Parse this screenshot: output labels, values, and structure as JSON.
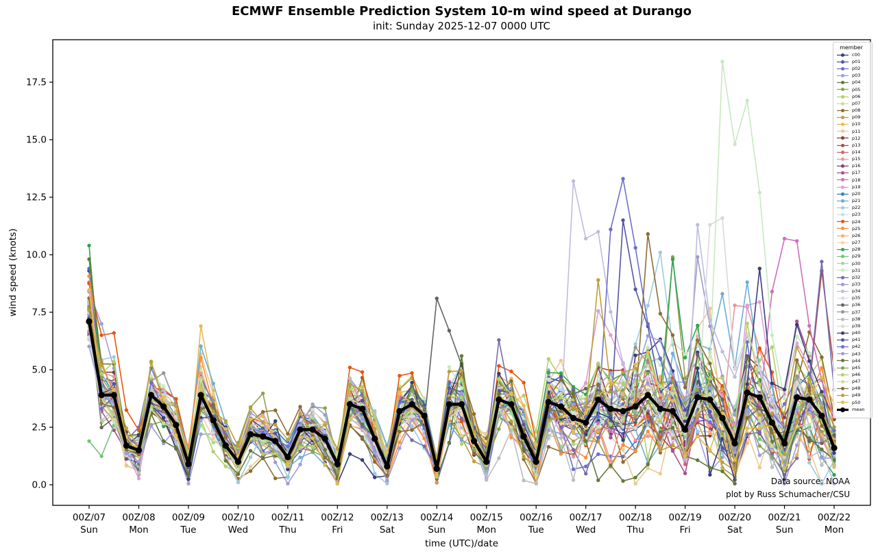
{
  "chart_data": {
    "type": "line",
    "title": "ECMWF Ensemble Prediction System 10-m wind speed at Durango",
    "subtitle": "init: Sunday 2025-12-07 0000 UTC",
    "xlabel": "time (UTC)/date",
    "ylabel": "wind speed (knots)",
    "annotation": [
      "Data source: NOAA",
      "plot by Russ Schumacher/CSU"
    ],
    "legend_title": "member",
    "grid": false,
    "legend_position": "upper right",
    "ylim": [
      -0.9,
      19.4
    ],
    "y_ticks": {
      "values": [
        0,
        2.5,
        5,
        7.5,
        10,
        12.5,
        15,
        17.5
      ],
      "labels": [
        "0.0",
        "2.5",
        "5.0",
        "7.5",
        "10.0",
        "12.5",
        "15.0",
        "17.5"
      ]
    },
    "x_ticks": [
      {
        "label": "00Z/07",
        "day": "Sun"
      },
      {
        "label": "00Z/08",
        "day": "Mon"
      },
      {
        "label": "00Z/09",
        "day": "Tue"
      },
      {
        "label": "00Z/10",
        "day": "Wed"
      },
      {
        "label": "00Z/11",
        "day": "Thu"
      },
      {
        "label": "00Z/12",
        "day": "Fri"
      },
      {
        "label": "00Z/13",
        "day": "Sat"
      },
      {
        "label": "00Z/14",
        "day": "Sun"
      },
      {
        "label": "00Z/15",
        "day": "Mon"
      },
      {
        "label": "00Z/16",
        "day": "Tue"
      },
      {
        "label": "00Z/17",
        "day": "Wed"
      },
      {
        "label": "00Z/18",
        "day": "Thu"
      },
      {
        "label": "00Z/19",
        "day": "Fri"
      },
      {
        "label": "00Z/20",
        "day": "Sat"
      },
      {
        "label": "00Z/21",
        "day": "Sun"
      },
      {
        "label": "00Z/22",
        "day": "Mon"
      }
    ],
    "points_per_series": 61,
    "step_hours": 6,
    "mean": {
      "name": "mean",
      "color": "#000000",
      "values": [
        7.1,
        3.9,
        3.9,
        1.7,
        1.5,
        3.9,
        3.4,
        2.6,
        0.9,
        3.9,
        2.8,
        1.7,
        1.0,
        2.2,
        2.1,
        1.9,
        1.2,
        2.4,
        2.4,
        2.0,
        0.9,
        3.5,
        3.3,
        2.0,
        0.8,
        3.2,
        3.5,
        3.0,
        0.7,
        3.5,
        3.5,
        1.9,
        1.0,
        3.7,
        3.5,
        2.1,
        1.0,
        3.6,
        3.4,
        2.9,
        2.7,
        3.7,
        3.3,
        3.2,
        3.4,
        3.9,
        3.3,
        3.2,
        2.4,
        3.8,
        3.7,
        2.9,
        1.8,
        4.0,
        3.8,
        2.7,
        1.8,
        3.8,
        3.7,
        3.0,
        1.6
      ]
    },
    "members": [
      {
        "name": "c00",
        "color": "#393b79",
        "seed": 11
      },
      {
        "name": "p01",
        "color": "#5254a3",
        "seed": 23
      },
      {
        "name": "p02",
        "color": "#6b6ecf",
        "seed": 37
      },
      {
        "name": "p03",
        "color": "#9c9ede",
        "seed": 41
      },
      {
        "name": "p04",
        "color": "#637939",
        "seed": 53
      },
      {
        "name": "p05",
        "color": "#8ca252",
        "seed": 67
      },
      {
        "name": "p06",
        "color": "#b5cf6b",
        "seed": 71
      },
      {
        "name": "p07",
        "color": "#cedb9c",
        "seed": 83
      },
      {
        "name": "p08",
        "color": "#8c6d31",
        "seed": 89
      },
      {
        "name": "p09",
        "color": "#bd9e39",
        "seed": 97
      },
      {
        "name": "p10",
        "color": "#e7ba52",
        "seed": 103
      },
      {
        "name": "p11",
        "color": "#e7cb94",
        "seed": 109
      },
      {
        "name": "p12",
        "color": "#843c39",
        "seed": 127
      },
      {
        "name": "p13",
        "color": "#ad494a",
        "seed": 131
      },
      {
        "name": "p14",
        "color": "#d6616b",
        "seed": 139
      },
      {
        "name": "p15",
        "color": "#e7969c",
        "seed": 149
      },
      {
        "name": "p16",
        "color": "#7b4173",
        "seed": 157
      },
      {
        "name": "p17",
        "color": "#a55194",
        "seed": 163
      },
      {
        "name": "p18",
        "color": "#ce6dbd",
        "seed": 173
      },
      {
        "name": "p19",
        "color": "#de9ed6",
        "seed": 179
      },
      {
        "name": "p20",
        "color": "#3182bd",
        "seed": 191
      },
      {
        "name": "p21",
        "color": "#6baed6",
        "seed": 193
      },
      {
        "name": "p22",
        "color": "#9ecae1",
        "seed": 199
      },
      {
        "name": "p23",
        "color": "#c6dbef",
        "seed": 211
      },
      {
        "name": "p24",
        "color": "#e6550d",
        "seed": 223
      },
      {
        "name": "p25",
        "color": "#fd8d3c",
        "seed": 227
      },
      {
        "name": "p26",
        "color": "#fdae6b",
        "seed": 233
      },
      {
        "name": "p27",
        "color": "#fdd0a2",
        "seed": 239
      },
      {
        "name": "p28",
        "color": "#31a354",
        "seed": 251
      },
      {
        "name": "p29",
        "color": "#74c476",
        "seed": 257
      },
      {
        "name": "p30",
        "color": "#a1d99b",
        "seed": 263
      },
      {
        "name": "p31",
        "color": "#c7e9c0",
        "seed": 271
      },
      {
        "name": "p32",
        "color": "#756bb1",
        "seed": 277
      },
      {
        "name": "p33",
        "color": "#9e9ac8",
        "seed": 281
      },
      {
        "name": "p34",
        "color": "#bcbddc",
        "seed": 293
      },
      {
        "name": "p35",
        "color": "#dadaeb",
        "seed": 307
      },
      {
        "name": "p36",
        "color": "#636363",
        "seed": 311
      },
      {
        "name": "p37",
        "color": "#969696",
        "seed": 317
      },
      {
        "name": "p38",
        "color": "#bdbdbd",
        "seed": 331
      },
      {
        "name": "p39",
        "color": "#d9d9d9",
        "seed": 337
      },
      {
        "name": "p40",
        "color": "#393b79",
        "seed": 349
      },
      {
        "name": "p41",
        "color": "#5254a3",
        "seed": 353
      },
      {
        "name": "p42",
        "color": "#6b6ecf",
        "seed": 359
      },
      {
        "name": "p43",
        "color": "#9c9ede",
        "seed": 367
      },
      {
        "name": "p44",
        "color": "#637939",
        "seed": 373
      },
      {
        "name": "p45",
        "color": "#8ca252",
        "seed": 379
      },
      {
        "name": "p46",
        "color": "#b5cf6b",
        "seed": 389
      },
      {
        "name": "p47",
        "color": "#cedb9c",
        "seed": 397
      },
      {
        "name": "p48",
        "color": "#8c6d31",
        "seed": 401
      },
      {
        "name": "p49",
        "color": "#bd9e39",
        "seed": 409
      },
      {
        "name": "p50",
        "color": "#e7ba52",
        "seed": 419
      }
    ],
    "member_gen": {
      "sigma": [
        2.0,
        1.4,
        1.4,
        0.7,
        0.8,
        1.2,
        1.1,
        0.9,
        0.7,
        1.2,
        1.0,
        0.8,
        0.6,
        0.9,
        0.9,
        0.8,
        0.7,
        1.0,
        1.0,
        0.9,
        0.6,
        1.2,
        1.2,
        0.9,
        0.6,
        1.2,
        1.2,
        1.1,
        0.6,
        1.3,
        1.5,
        1.0,
        0.8,
        1.4,
        1.4,
        1.2,
        0.9,
        1.5,
        1.6,
        1.6,
        1.5,
        1.8,
        1.7,
        1.9,
        2.0,
        2.1,
        2.1,
        1.9,
        1.7,
        2.2,
        2.2,
        2.0,
        1.7,
        2.3,
        2.2,
        1.8,
        1.5,
        2.1,
        2.0,
        1.8,
        1.4
      ],
      "ar": 0.55,
      "k_min": 0.55,
      "k_span": 1.0,
      "clip_min": 0.05,
      "clip_max": 19.0
    },
    "feature_points": [
      [
        "c00",
        0,
        9.3
      ],
      [
        "p03",
        0,
        8.4
      ],
      [
        "p03",
        1,
        7.0
      ],
      [
        "p20",
        0,
        9.4
      ],
      [
        "p28",
        0,
        10.4
      ],
      [
        "p28",
        47,
        9.8
      ],
      [
        "p29",
        0,
        1.9
      ],
      [
        "p24",
        1,
        6.5
      ],
      [
        "p24",
        2,
        6.6
      ],
      [
        "p24",
        21,
        5.1
      ],
      [
        "p24",
        22,
        4.9
      ],
      [
        "p10",
        9,
        6.9
      ],
      [
        "p12",
        4,
        0.45
      ],
      [
        "p36",
        28,
        8.1
      ],
      [
        "p36",
        29,
        6.7
      ],
      [
        "p36",
        30,
        5.2
      ],
      [
        "p44",
        30,
        5.6
      ],
      [
        "p34",
        39,
        13.2
      ],
      [
        "p34",
        40,
        10.7
      ],
      [
        "p34",
        41,
        11.0
      ],
      [
        "p34",
        49,
        11.3
      ],
      [
        "p49",
        41,
        8.9
      ],
      [
        "p42",
        42,
        11.1
      ],
      [
        "p42",
        43,
        13.3
      ],
      [
        "p42",
        44,
        10.3
      ],
      [
        "p41",
        43,
        11.5
      ],
      [
        "p48",
        45,
        10.9
      ],
      [
        "p22",
        46,
        10.1
      ],
      [
        "p05",
        47,
        9.9
      ],
      [
        "p33",
        49,
        9.9
      ],
      [
        "p39",
        50,
        11.3
      ],
      [
        "p39",
        51,
        11.6
      ],
      [
        "p31",
        50,
        5.3
      ],
      [
        "p31",
        51,
        18.4
      ],
      [
        "p31",
        52,
        14.8
      ],
      [
        "p31",
        53,
        16.7
      ],
      [
        "p31",
        54,
        12.7
      ],
      [
        "p31",
        55,
        6.5
      ],
      [
        "p21",
        51,
        8.3
      ],
      [
        "p15",
        52,
        7.8
      ],
      [
        "p19",
        53,
        7.8
      ],
      [
        "p18",
        55,
        8.4
      ],
      [
        "p18",
        56,
        10.7
      ],
      [
        "p40",
        54,
        9.4
      ],
      [
        "p32",
        59,
        9.7
      ],
      [
        "p13",
        59,
        9.3
      ]
    ]
  }
}
